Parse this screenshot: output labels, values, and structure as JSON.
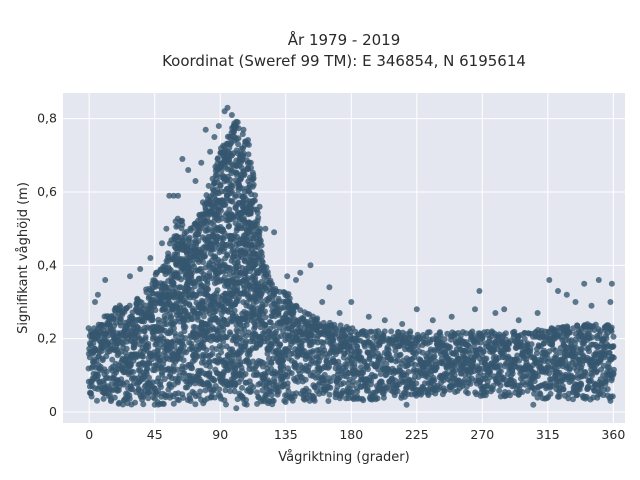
{
  "chart_data": {
    "type": "scatter",
    "title": "År 1979 - 2019",
    "subtitle": "Koordinat (Sweref 99 TM): E 346854, N 6195614",
    "xlabel": "Vågriktning (grader)",
    "ylabel": "Signifikant våghöjd (m)",
    "xlim": [
      -18,
      368
    ],
    "ylim": [
      -0.03,
      0.87
    ],
    "xticks": [
      0,
      45,
      90,
      135,
      180,
      225,
      270,
      315,
      360
    ],
    "xtick_labels": [
      "0",
      "45",
      "90",
      "135",
      "180",
      "225",
      "270",
      "315",
      "360"
    ],
    "yticks": [
      0,
      0.2,
      0.4,
      0.6,
      0.8
    ],
    "ytick_labels": [
      "0",
      "0,2",
      "0,4",
      "0,6",
      "0,8"
    ],
    "grid": true,
    "marker_color": "#34566e",
    "background": "#e5e7f0",
    "envelope": {
      "x": [
        0,
        10,
        20,
        30,
        40,
        50,
        55,
        60,
        65,
        70,
        75,
        80,
        85,
        90,
        95,
        100,
        105,
        110,
        115,
        120,
        125,
        130,
        135,
        140,
        145,
        150,
        160,
        170,
        180,
        200,
        220,
        240,
        260,
        280,
        300,
        320,
        340,
        360
      ],
      "upper": [
        0.23,
        0.26,
        0.29,
        0.31,
        0.34,
        0.4,
        0.45,
        0.53,
        0.52,
        0.5,
        0.53,
        0.6,
        0.65,
        0.72,
        0.75,
        0.8,
        0.76,
        0.74,
        0.58,
        0.42,
        0.35,
        0.33,
        0.33,
        0.31,
        0.28,
        0.27,
        0.25,
        0.24,
        0.23,
        0.22,
        0.22,
        0.22,
        0.22,
        0.22,
        0.22,
        0.23,
        0.24,
        0.24
      ],
      "lower": [
        0.03,
        0.03,
        0.02,
        0.02,
        0.02,
        0.02,
        0.02,
        0.02,
        0.02,
        0.02,
        0.02,
        0.02,
        0.02,
        0.02,
        0.02,
        0.02,
        0.02,
        0.02,
        0.02,
        0.02,
        0.02,
        0.02,
        0.02,
        0.03,
        0.03,
        0.03,
        0.03,
        0.03,
        0.03,
        0.03,
        0.04,
        0.04,
        0.04,
        0.04,
        0.04,
        0.03,
        0.03,
        0.03
      ]
    },
    "outliers": [
      {
        "x": 4,
        "y": 0.3
      },
      {
        "x": 6,
        "y": 0.32
      },
      {
        "x": 11,
        "y": 0.36
      },
      {
        "x": 28,
        "y": 0.37
      },
      {
        "x": 35,
        "y": 0.39
      },
      {
        "x": 42,
        "y": 0.42
      },
      {
        "x": 46,
        "y": 0.38
      },
      {
        "x": 50,
        "y": 0.46
      },
      {
        "x": 53,
        "y": 0.5
      },
      {
        "x": 55,
        "y": 0.59
      },
      {
        "x": 58,
        "y": 0.59
      },
      {
        "x": 61,
        "y": 0.59
      },
      {
        "x": 64,
        "y": 0.69
      },
      {
        "x": 68,
        "y": 0.66
      },
      {
        "x": 73,
        "y": 0.63
      },
      {
        "x": 77,
        "y": 0.68
      },
      {
        "x": 80,
        "y": 0.77
      },
      {
        "x": 83,
        "y": 0.71
      },
      {
        "x": 86,
        "y": 0.75
      },
      {
        "x": 89,
        "y": 0.78
      },
      {
        "x": 93,
        "y": 0.82
      },
      {
        "x": 95,
        "y": 0.83
      },
      {
        "x": 98,
        "y": 0.81
      },
      {
        "x": 102,
        "y": 0.79
      },
      {
        "x": 106,
        "y": 0.77
      },
      {
        "x": 111,
        "y": 0.68
      },
      {
        "x": 113,
        "y": 0.62
      },
      {
        "x": 117,
        "y": 0.56
      },
      {
        "x": 121,
        "y": 0.5
      },
      {
        "x": 127,
        "y": 0.49
      },
      {
        "x": 136,
        "y": 0.37
      },
      {
        "x": 142,
        "y": 0.36
      },
      {
        "x": 145,
        "y": 0.38
      },
      {
        "x": 152,
        "y": 0.4
      },
      {
        "x": 160,
        "y": 0.3
      },
      {
        "x": 165,
        "y": 0.34
      },
      {
        "x": 172,
        "y": 0.27
      },
      {
        "x": 180,
        "y": 0.3
      },
      {
        "x": 192,
        "y": 0.26
      },
      {
        "x": 203,
        "y": 0.25
      },
      {
        "x": 215,
        "y": 0.24
      },
      {
        "x": 225,
        "y": 0.28
      },
      {
        "x": 236,
        "y": 0.25
      },
      {
        "x": 249,
        "y": 0.26
      },
      {
        "x": 265,
        "y": 0.28
      },
      {
        "x": 268,
        "y": 0.33
      },
      {
        "x": 279,
        "y": 0.27
      },
      {
        "x": 285,
        "y": 0.28
      },
      {
        "x": 295,
        "y": 0.25
      },
      {
        "x": 308,
        "y": 0.27
      },
      {
        "x": 316,
        "y": 0.36
      },
      {
        "x": 322,
        "y": 0.33
      },
      {
        "x": 328,
        "y": 0.32
      },
      {
        "x": 334,
        "y": 0.3
      },
      {
        "x": 340,
        "y": 0.35
      },
      {
        "x": 345,
        "y": 0.29
      },
      {
        "x": 350,
        "y": 0.36
      },
      {
        "x": 358,
        "y": 0.3
      },
      {
        "x": 359,
        "y": 0.35
      },
      {
        "x": 101,
        "y": 0.01
      },
      {
        "x": 218,
        "y": 0.02
      },
      {
        "x": 305,
        "y": 0.02
      }
    ]
  }
}
